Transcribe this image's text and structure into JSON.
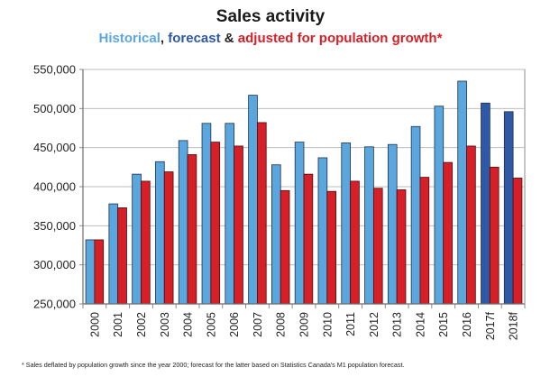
{
  "chart_data": {
    "type": "bar",
    "title": "Sales activity",
    "subtitle": {
      "historical": "Historical",
      "sep1": ", ",
      "forecast": "forecast",
      "sep2": " & ",
      "adjusted": "adjusted for population growth*"
    },
    "categories": [
      "2000",
      "2001",
      "2002",
      "2003",
      "2004",
      "2005",
      "2006",
      "2007",
      "2008",
      "2009",
      "2010",
      "2011",
      "2012",
      "2013",
      "2014",
      "2015",
      "2016",
      "2017f",
      "2018f"
    ],
    "series": [
      {
        "name": "Historical / forecast",
        "values": [
          332000,
          378000,
          416000,
          432000,
          459000,
          481000,
          481000,
          517000,
          428000,
          457000,
          437000,
          456000,
          451000,
          454000,
          477000,
          503000,
          535000,
          507000,
          496000
        ],
        "colors": [
          "#5aa7e0",
          "#5aa7e0",
          "#5aa7e0",
          "#5aa7e0",
          "#5aa7e0",
          "#5aa7e0",
          "#5aa7e0",
          "#5aa7e0",
          "#5aa7e0",
          "#5aa7e0",
          "#5aa7e0",
          "#5aa7e0",
          "#5aa7e0",
          "#5aa7e0",
          "#5aa7e0",
          "#5aa7e0",
          "#5aa7e0",
          "#2d59a6",
          "#2d59a6"
        ]
      },
      {
        "name": "Adjusted for population growth",
        "values": [
          332000,
          373000,
          407000,
          419000,
          441000,
          457000,
          452000,
          482000,
          395000,
          416000,
          394000,
          407000,
          398000,
          396000,
          412000,
          431000,
          452000,
          425000,
          411000
        ],
        "color": "#d61f26"
      }
    ],
    "ylim": [
      250000,
      550000
    ],
    "yticks": [
      250000,
      300000,
      350000,
      400000,
      450000,
      500000,
      550000
    ],
    "ytick_labels": [
      "250,000",
      "300,000",
      "350,000",
      "400,000",
      "450,000",
      "500,000",
      "550,000"
    ],
    "grid": true,
    "xlabel": "",
    "ylabel": ""
  },
  "footnote": "* Sales deflated by population growth since the year 2000; forecast for the latter based on Statistics Canada's M1 population forecast."
}
